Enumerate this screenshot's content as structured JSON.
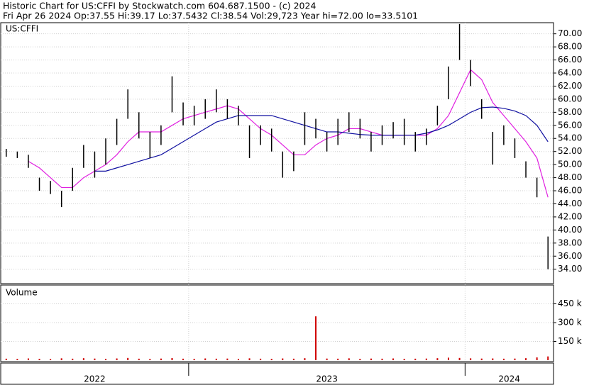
{
  "chart_data": {
    "type": "ohlc",
    "title": "Historic Chart for US:CFFI by Stockwatch.com 604.687.1500 - (c) 2024",
    "subtitle": "Fri Apr 26 2024  Op:37.55  Hi:39.17  Lo:37.5432  Cl:38.54  Vol:29,723  Year hi=72.00  lo=33.5101",
    "symbol": "US:CFFI",
    "xlim": [
      2022.32,
      2024.32
    ],
    "xticks": [
      2022,
      2023,
      2024
    ],
    "ylim": [
      31.8,
      71.7
    ],
    "yticks": [
      {
        "value": 34,
        "label": "34.00"
      },
      {
        "value": 36,
        "label": "36.00"
      },
      {
        "value": 38,
        "label": "38.00"
      },
      {
        "value": 40,
        "label": "40.00"
      },
      {
        "value": 42,
        "label": "42.00"
      },
      {
        "value": 44,
        "label": "44.00"
      },
      {
        "value": 46,
        "label": "46.00"
      },
      {
        "value": 48,
        "label": "48.00"
      },
      {
        "value": 50,
        "label": "50.00"
      },
      {
        "value": 52,
        "label": "52.00"
      },
      {
        "value": 54,
        "label": "54.00"
      },
      {
        "value": 56,
        "label": "56.00"
      },
      {
        "value": 58,
        "label": "58.00"
      },
      {
        "value": 60,
        "label": "60.00"
      },
      {
        "value": 62,
        "label": "62.00"
      },
      {
        "value": 64,
        "label": "64.00"
      },
      {
        "value": 66,
        "label": "66.00"
      },
      {
        "value": 68,
        "label": "68.00"
      },
      {
        "value": 70,
        "label": "70.00"
      }
    ],
    "grid": true,
    "x": [
      2022.34,
      2022.38,
      2022.42,
      2022.46,
      2022.5,
      2022.54,
      2022.58,
      2022.62,
      2022.66,
      2022.7,
      2022.74,
      2022.78,
      2022.82,
      2022.86,
      2022.9,
      2022.94,
      2022.98,
      2023.02,
      2023.06,
      2023.1,
      2023.14,
      2023.18,
      2023.22,
      2023.26,
      2023.3,
      2023.34,
      2023.38,
      2023.42,
      2023.46,
      2023.5,
      2023.54,
      2023.58,
      2023.62,
      2023.66,
      2023.7,
      2023.74,
      2023.78,
      2023.82,
      2023.86,
      2023.9,
      2023.94,
      2023.98,
      2024.02,
      2024.06,
      2024.1,
      2024.14,
      2024.18,
      2024.22,
      2024.26,
      2024.3
    ],
    "price": {
      "color": "#000000",
      "high": [
        52.4,
        52,
        51.5,
        48,
        47.5,
        46,
        49.5,
        53,
        52,
        54,
        57,
        61.5,
        58,
        55,
        56,
        63.5,
        59.5,
        59,
        60,
        61.5,
        60,
        59,
        56,
        56,
        55.5,
        52,
        52,
        58,
        57,
        55,
        57,
        58,
        57,
        55,
        56,
        56.5,
        57,
        55,
        55.5,
        59,
        65,
        71.5,
        66,
        60,
        55,
        56,
        54,
        50.5,
        48,
        39
      ],
      "low": [
        51.2,
        51,
        49.5,
        46,
        45.5,
        43.5,
        46,
        49.5,
        48,
        50,
        53,
        57,
        54,
        51,
        53,
        58,
        56,
        56,
        57,
        58,
        57,
        56,
        51,
        53,
        52,
        48,
        49,
        53,
        54,
        52,
        53,
        55,
        54,
        52,
        53,
        54,
        53,
        52,
        53,
        56,
        60,
        66,
        62,
        57,
        50,
        53,
        51,
        48,
        45,
        34
      ]
    },
    "averages": [
      {
        "color": "#e020e0",
        "values": [
          null,
          null,
          50.5,
          49.5,
          48,
          46.5,
          46.5,
          48,
          49,
          50,
          51.5,
          53.5,
          55,
          55,
          55,
          56,
          57,
          57.5,
          58,
          58.5,
          59,
          58.5,
          57,
          55.5,
          54.5,
          53,
          51.5,
          51.5,
          53,
          54,
          54.5,
          55.5,
          55.5,
          55,
          54.5,
          54.5,
          54.5,
          54.5,
          54.5,
          55.5,
          57.5,
          61,
          64.5,
          63,
          59.5,
          57.5,
          55.5,
          53.5,
          51,
          45
        ]
      },
      {
        "color": "#1010a0",
        "values": [
          null,
          null,
          null,
          null,
          null,
          null,
          null,
          null,
          49,
          49,
          49.5,
          50,
          50.5,
          51,
          51.5,
          52.5,
          53.5,
          54.5,
          55.5,
          56.5,
          57,
          57.5,
          57.5,
          57.5,
          57.5,
          57,
          56.5,
          56,
          55.5,
          55,
          55,
          54.8,
          54.6,
          54.5,
          54.5,
          54.5,
          54.5,
          54.5,
          54.8,
          55.3,
          56,
          57,
          58,
          58.7,
          58.8,
          58.6,
          58.2,
          57.5,
          56,
          53.5
        ]
      }
    ],
    "volume": {
      "title": "Volume",
      "color": "#d00000",
      "ylim": [
        0,
        600000
      ],
      "yticks": [
        {
          "value": 150000,
          "label": "150 k"
        },
        {
          "value": 300000,
          "label": "300 k"
        },
        {
          "value": 450000,
          "label": "450 k"
        }
      ],
      "values": [
        12000,
        10000,
        14000,
        11000,
        9000,
        15000,
        12000,
        16000,
        13000,
        11000,
        14000,
        18000,
        12000,
        10000,
        13000,
        17000,
        12000,
        11000,
        14000,
        12000,
        13000,
        10000,
        15000,
        12000,
        11000,
        14000,
        12000,
        16000,
        350000,
        13000,
        12000,
        15000,
        11000,
        13000,
        12000,
        14000,
        11000,
        12000,
        13000,
        16000,
        20000,
        18000,
        15000,
        13000,
        14000,
        12000,
        13000,
        16000,
        22000,
        30000
      ]
    }
  }
}
